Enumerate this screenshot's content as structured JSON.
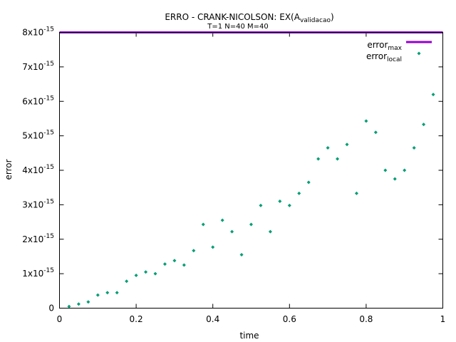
{
  "chart_data": {
    "type": "scatter",
    "title": {
      "main": "ERRO - CRANK-NICOLSON: EX(A",
      "main_sub": "validacao",
      "main_close": ")"
    },
    "subtitle": "T=1 N=40 M=40",
    "xlabel": "time",
    "ylabel": "error",
    "xlim": [
      0,
      1
    ],
    "ylim": [
      0,
      8e-15
    ],
    "xticks": [
      0,
      0.2,
      0.4,
      0.6,
      0.8,
      1
    ],
    "xtick_labels": [
      "0",
      "0.2",
      "0.4",
      "0.6",
      "0.8",
      "1"
    ],
    "yticks": [
      {
        "value": 0,
        "base": "0",
        "exp": ""
      },
      {
        "value": 1e-15,
        "base": "1x10",
        "exp": "-15"
      },
      {
        "value": 2e-15,
        "base": "2x10",
        "exp": "-15"
      },
      {
        "value": 3e-15,
        "base": "3x10",
        "exp": "-15"
      },
      {
        "value": 4e-15,
        "base": "4x10",
        "exp": "-15"
      },
      {
        "value": 5e-15,
        "base": "5x10",
        "exp": "-15"
      },
      {
        "value": 6e-15,
        "base": "6x10",
        "exp": "-15"
      },
      {
        "value": 7e-15,
        "base": "7x10",
        "exp": "-15"
      },
      {
        "value": 8e-15,
        "base": "8x10",
        "exp": "-15"
      }
    ],
    "grid": false,
    "legend_position": "top-right",
    "series": [
      {
        "name": "error",
        "name_sub": "max",
        "style": "line",
        "color": "#9400d3",
        "x": [
          0,
          1
        ],
        "y": [
          8e-15,
          8e-15
        ]
      },
      {
        "name": "error",
        "name_sub": "local",
        "style": "points",
        "color": "#009e73",
        "x": [
          0.025,
          0.05,
          0.075,
          0.1,
          0.125,
          0.15,
          0.175,
          0.2,
          0.225,
          0.25,
          0.275,
          0.3,
          0.325,
          0.35,
          0.375,
          0.4,
          0.425,
          0.45,
          0.475,
          0.5,
          0.525,
          0.55,
          0.575,
          0.6,
          0.625,
          0.65,
          0.675,
          0.7,
          0.725,
          0.75,
          0.775,
          0.8,
          0.825,
          0.85,
          0.875,
          0.9,
          0.925,
          0.95,
          0.975
        ],
        "y": [
          5e-17,
          1.2e-16,
          1.8e-16,
          3.8e-16,
          4.5e-16,
          4.5e-16,
          7.8e-16,
          9.5e-16,
          1.05e-15,
          1e-15,
          1.28e-15,
          1.38e-15,
          1.25e-15,
          1.67e-15,
          2.43e-15,
          1.77e-15,
          2.55e-15,
          2.22e-15,
          1.55e-15,
          2.43e-15,
          2.98e-15,
          2.22e-15,
          3.1e-15,
          2.98e-15,
          3.33e-15,
          3.65e-15,
          4.33e-15,
          4.65e-15,
          4.33e-15,
          4.75e-15,
          3.33e-15,
          5.43e-15,
          5.1e-15,
          4e-15,
          3.75e-15,
          4e-15,
          4.65e-15,
          5.33e-15,
          6.2e-15
        ]
      }
    ]
  }
}
